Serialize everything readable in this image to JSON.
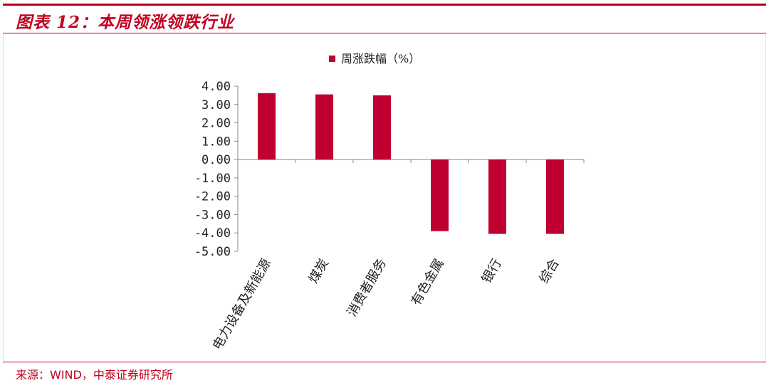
{
  "header": {
    "title": "图表 12：本周领涨领跌行业"
  },
  "footer": {
    "source": "来源：WIND，中泰证券研究所"
  },
  "colors": {
    "accent": "#c00020",
    "bar": "#c00030"
  },
  "chart_data": {
    "type": "bar",
    "title": "",
    "xlabel": "",
    "ylabel": "",
    "legend": {
      "label": "周涨跌幅（%）",
      "placement": "top-center"
    },
    "categories": [
      "电力设备及新能源",
      "煤炭",
      "消费者服务",
      "有色金属",
      "银行",
      "综合"
    ],
    "series": [
      {
        "name": "周涨跌幅（%）",
        "values": [
          3.62,
          3.55,
          3.5,
          -3.9,
          -4.05,
          -4.05
        ]
      }
    ],
    "ylim": [
      -5,
      4
    ],
    "yticks": [
      "4.00",
      "3.00",
      "2.00",
      "1.00",
      "0.00",
      "-1.00",
      "-2.00",
      "-3.00",
      "-4.00",
      "-5.00"
    ],
    "grid": false
  }
}
